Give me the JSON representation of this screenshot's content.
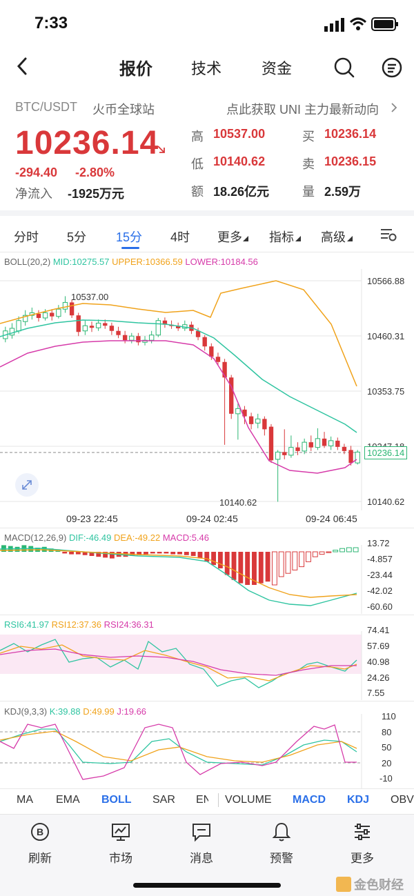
{
  "status": {
    "time": "7:33"
  },
  "nav": {
    "tabs": [
      "报价",
      "技术",
      "资金"
    ],
    "active": 0
  },
  "pair": {
    "symbol": "BTC/USDT",
    "exchange": "火币全球站",
    "promo": "点此获取 UNI 主力最新动向"
  },
  "quote": {
    "price": "10236.14",
    "change": "-294.40",
    "change_pct": "-2.80%",
    "inflow_label": "净流入",
    "inflow_value": "-1925万元",
    "high_label": "高",
    "high": "10537.00",
    "low_label": "低",
    "low": "10140.62",
    "amount_label": "额",
    "amount": "18.26亿元",
    "buy_label": "买",
    "buy": "10236.14",
    "sell_label": "卖",
    "sell": "10236.15",
    "volume_label": "量",
    "volume": "2.59万"
  },
  "periods": [
    "分时",
    "5分",
    "15分",
    "4时",
    "更多",
    "指标",
    "高级"
  ],
  "active_period": 2,
  "boll": {
    "legend_name": "BOLL(20,2)",
    "mid": "MID:10275.57",
    "upper": "UPPER:10366.59",
    "lower": "LOWER:10184.56",
    "y_labels": [
      "10566.88",
      "10460.31",
      "10353.75",
      "10247.18",
      "10140.62"
    ],
    "current_price": "10236.14",
    "high_mark": "10537.00",
    "low_mark": "10140.62",
    "x_labels": [
      "09-23 22:45",
      "09-24 02:45",
      "09-24 06:45"
    ]
  },
  "macd": {
    "legend_name": "MACD(12,26,9)",
    "dif": "DIF:-46.49",
    "dea": "DEA:-49.22",
    "macd": "MACD:5.46",
    "y_labels": [
      "13.72",
      "-4.857",
      "-23.44",
      "-42.02",
      "-60.60"
    ]
  },
  "rsi": {
    "rsi6": "RSI6:41.97",
    "rsi12": "RSI12:37.36",
    "rsi24": "RSI24:36.31",
    "y_labels": [
      "74.41",
      "57.69",
      "40.98",
      "24.26",
      "7.55"
    ]
  },
  "kdj": {
    "legend_name": "KDJ(9,3,3)",
    "k": "K:39.88",
    "d": "D:49.99",
    "j": "J:19.66",
    "y_labels": [
      "110",
      "80",
      "50",
      "20",
      "-10"
    ]
  },
  "indicator_tabs": [
    "MA",
    "EMA",
    "BOLL",
    "SAR",
    "EN",
    "VOLUME",
    "MACD",
    "KDJ",
    "OBV"
  ],
  "active_indicator_tabs": [
    "BOLL",
    "MACD",
    "KDJ"
  ],
  "bottom_nav": [
    {
      "label": "刷新",
      "icon": "refresh-icon"
    },
    {
      "label": "市场",
      "icon": "market-chart-icon"
    },
    {
      "label": "消息",
      "icon": "message-icon"
    },
    {
      "label": "预警",
      "icon": "bell-icon"
    },
    {
      "label": "更多",
      "icon": "more-sliders-icon"
    }
  ],
  "watermark": "金色财经",
  "colors": {
    "up": "#2bb673",
    "down": "#d9383a",
    "accent": "#2a6fe8",
    "mid": "#2ec4a0",
    "upper": "#f0a21a",
    "lower": "#d63aa9"
  }
}
